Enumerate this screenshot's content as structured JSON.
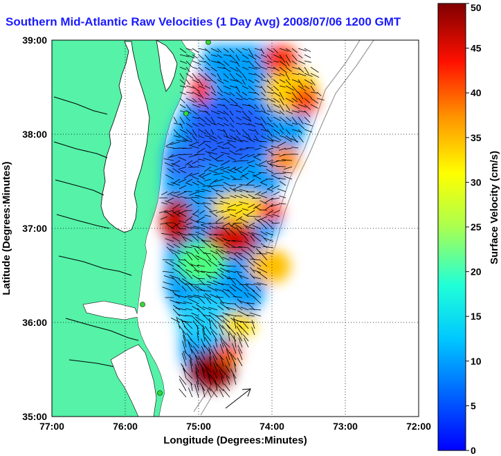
{
  "title": "Southern Mid-Atlantic Raw Velocities (1 Day Avg) 2008/07/06 1200 GMT",
  "x_axis": {
    "label": "Longitude (Degrees:Minutes)",
    "ticks": [
      "77:00",
      "76:00",
      "75:00",
      "74:00",
      "73:00",
      "72:00"
    ]
  },
  "y_axis": {
    "label": "Latitude (Degrees:Minutes)",
    "ticks": [
      "39:00",
      "38:00",
      "37:00",
      "36:00",
      "35:00"
    ]
  },
  "colorbar": {
    "label": "Surface Velocity (cm/s)",
    "ticks": [
      "0",
      "5",
      "10",
      "15",
      "20",
      "25",
      "30",
      "35",
      "40",
      "45",
      "50"
    ],
    "range": [
      0,
      50
    ],
    "colormap": "jet"
  },
  "colors": {
    "title": "#1a1aff",
    "land": "#55f2a8",
    "station": "#33dd33"
  },
  "map": {
    "lon_range": [
      -77,
      -72
    ],
    "lat_range": [
      35,
      39
    ],
    "grid": "dotted",
    "stations": [
      {
        "lon": -74.9,
        "lat": 39.0
      },
      {
        "lon": -75.15,
        "lat": 38.22
      },
      {
        "lon": -75.6,
        "lat": 36.18
      },
      {
        "lon": -75.52,
        "lat": 35.25
      }
    ]
  }
}
